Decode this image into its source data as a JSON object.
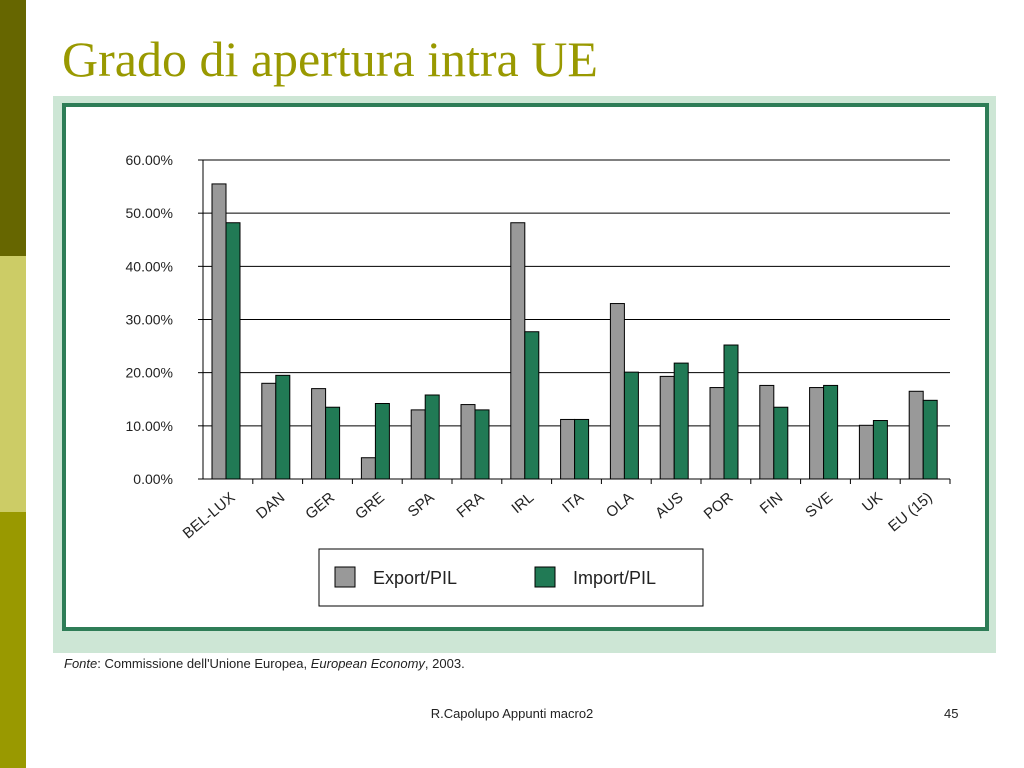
{
  "slide": {
    "title": "Grado di apertura intra UE",
    "source_label": "Fonte",
    "source_text_1": ": Commissione dell'Unione Europea, ",
    "source_italic": "European Economy",
    "source_text_2": ", 2003.",
    "footer": "R.Capolupo Appunti macro2",
    "page_number": "45"
  },
  "colors": {
    "sidebar_top": "#666600",
    "sidebar_mid": "#cccc66",
    "sidebar_bottom": "#999900",
    "title": "#999900",
    "panel_bg": "#cde6d5",
    "panel_border": "#2e7d57",
    "export": "#999999",
    "import": "#217a55"
  },
  "chart_data": {
    "type": "bar",
    "categories": [
      "BEL-LUX",
      "DAN",
      "GER",
      "GRE",
      "SPA",
      "FRA",
      "IRL",
      "ITA",
      "OLA",
      "AUS",
      "POR",
      "FIN",
      "SVE",
      "UK",
      "EU (15)"
    ],
    "series": [
      {
        "name": "Export/PIL",
        "values": [
          55.5,
          18.0,
          17.0,
          4.0,
          13.0,
          14.0,
          48.2,
          11.2,
          33.0,
          19.3,
          17.2,
          17.6,
          17.2,
          10.1,
          16.5
        ]
      },
      {
        "name": "Import/PIL",
        "values": [
          48.2,
          19.5,
          13.5,
          14.2,
          15.8,
          13.0,
          27.7,
          11.2,
          20.1,
          21.8,
          25.2,
          13.5,
          17.6,
          11.0,
          14.8
        ]
      }
    ],
    "yticks": [
      "0.00%",
      "10.00%",
      "20.00%",
      "30.00%",
      "40.00%",
      "50.00%",
      "60.00%"
    ],
    "ylim": [
      0,
      60
    ],
    "grid": true,
    "legend_placement": "bottom-center"
  }
}
